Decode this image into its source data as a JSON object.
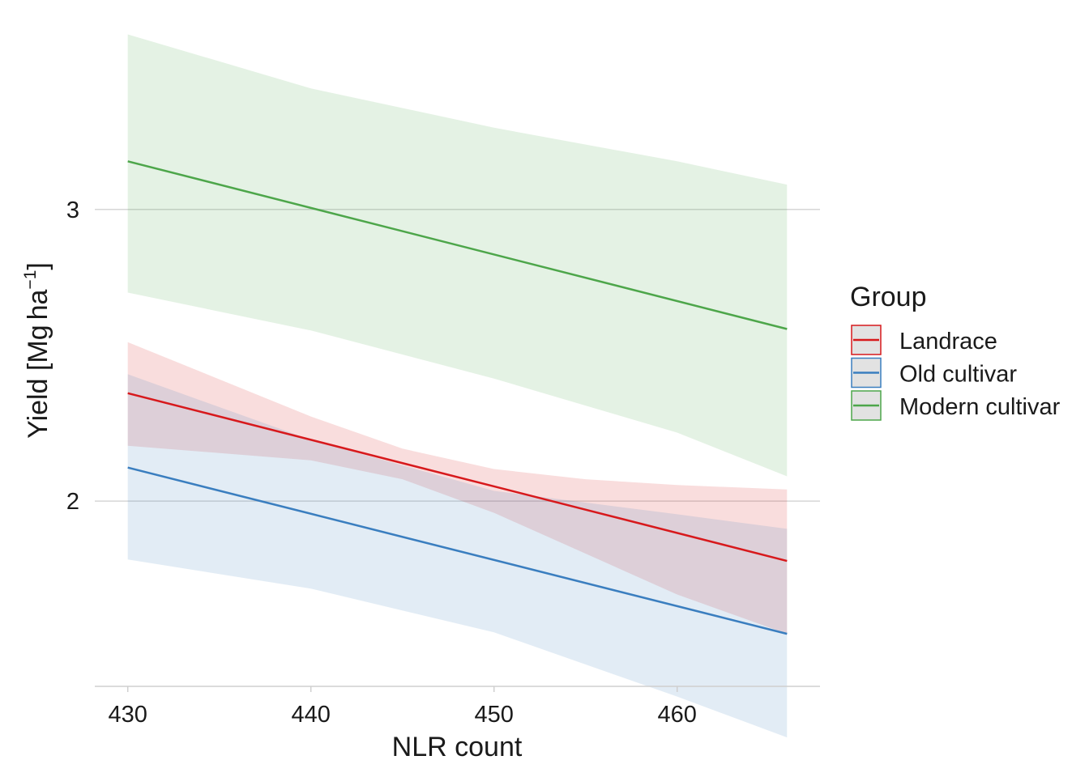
{
  "chart_data": {
    "type": "line",
    "xlabel": "NLR count",
    "ylabel": {
      "prefix": "Yield [Mg",
      "unit": "ha",
      "exponent": "−1",
      "suffix": "]"
    },
    "xlim": [
      428.2,
      467.8
    ],
    "ylim": [
      1.365,
      3.607
    ],
    "x_ticks": [
      430,
      440,
      450,
      460
    ],
    "y_ticks": [
      2,
      3
    ],
    "grid": {
      "horizontal": true,
      "vertical": false
    },
    "legend": {
      "title": "Group",
      "position": "right"
    },
    "x": [
      430,
      466
    ],
    "series": [
      {
        "name": "Landrace",
        "color": "#d7191c",
        "band_color": "#f8d0d2",
        "values": [
          2.37,
          1.795
        ],
        "ribbon_x": [
          430,
          440,
          445,
          450,
          455,
          460,
          466
        ],
        "ribbon_upper": [
          2.545,
          2.29,
          2.18,
          2.11,
          2.075,
          2.055,
          2.04
        ],
        "ribbon_lower": [
          2.19,
          2.14,
          2.075,
          1.96,
          1.82,
          1.68,
          1.545
        ]
      },
      {
        "name": "Old cultivar",
        "color": "#3a7ebf",
        "band_color": "#dce7f3",
        "values": [
          2.115,
          1.545
        ],
        "ribbon_x": [
          430,
          440,
          450,
          460,
          466
        ],
        "ribbon_upper": [
          2.435,
          2.21,
          2.035,
          1.955,
          1.905
        ],
        "ribbon_lower": [
          1.8,
          1.7,
          1.55,
          1.33,
          1.19
        ]
      },
      {
        "name": "Modern cultivar",
        "color": "#4da64a",
        "band_color": "#e1f0e0",
        "values": [
          3.165,
          2.59
        ],
        "ribbon_x": [
          430,
          440,
          450,
          460,
          466
        ],
        "ribbon_upper": [
          3.6,
          3.415,
          3.28,
          3.165,
          3.085
        ],
        "ribbon_lower": [
          2.715,
          2.585,
          2.42,
          2.235,
          2.085
        ]
      }
    ]
  }
}
